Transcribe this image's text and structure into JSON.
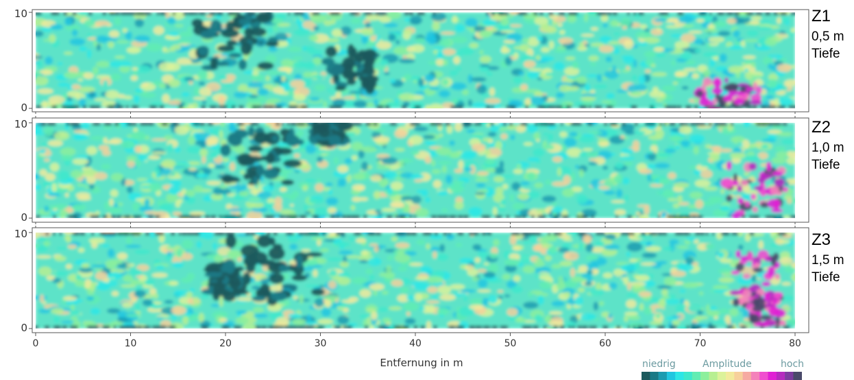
{
  "chart_data": {
    "type": "heatmap",
    "xlabel": "Entfernung in m",
    "x_ticks": [
      0,
      10,
      20,
      30,
      40,
      50,
      60,
      70,
      80
    ],
    "xlim": [
      0,
      80
    ],
    "ylim": [
      0,
      10
    ],
    "y_ticks": [
      0,
      10
    ],
    "panels": [
      {
        "id": "Z1",
        "title": "Z1",
        "depth": "0,5 m",
        "depth_label": "Tiefe",
        "low_zones": [
          [
            21,
            7,
            5,
            3.5
          ],
          [
            33,
            4,
            3,
            2.5
          ]
        ],
        "high_zones": [
          [
            73,
            1.5,
            4,
            2
          ]
        ]
      },
      {
        "id": "Z2",
        "title": "Z2",
        "depth": "1,0 m",
        "depth_label": "Tiefe",
        "low_zones": [
          [
            24,
            6.5,
            5,
            3.5
          ],
          [
            31,
            9,
            2,
            1.2
          ]
        ],
        "high_zones": [
          [
            76,
            3,
            4,
            3.5
          ]
        ]
      },
      {
        "id": "Z3",
        "title": "Z3",
        "depth": "1,5 m",
        "depth_label": "Tiefe",
        "low_zones": [
          [
            25,
            6,
            6,
            4
          ],
          [
            20,
            5,
            2,
            2
          ]
        ],
        "high_zones": [
          [
            76,
            5,
            3,
            3.5
          ],
          [
            77,
            2,
            2,
            2
          ]
        ]
      }
    ],
    "legend": {
      "low": "niedrig",
      "title": "Amplitude",
      "high": "hoch",
      "colors": [
        "#1c5a5d",
        "#1a7a86",
        "#1b9bb0",
        "#20c6e0",
        "#2ce6e6",
        "#3ee8cc",
        "#62ecb2",
        "#8cef9c",
        "#b7ef92",
        "#dcf29a",
        "#f2ea9c",
        "#f7d09b",
        "#f6aaa2",
        "#f482ba",
        "#f04ecf",
        "#e020d4",
        "#b52bbf",
        "#7d3c9f",
        "#4a4a6a"
      ]
    }
  }
}
